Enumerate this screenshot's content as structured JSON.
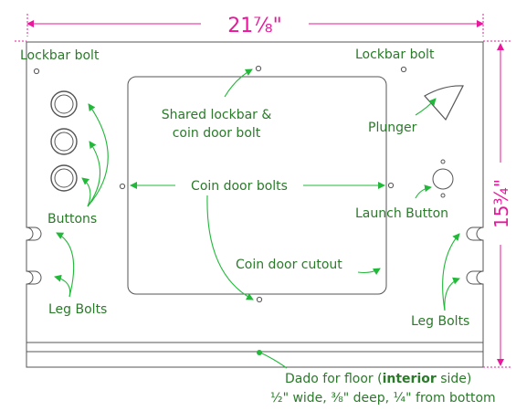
{
  "dimensions": {
    "width_label": "21⅞\"",
    "height_label": "15¾\""
  },
  "labels": {
    "lockbar_left": "Lockbar bolt",
    "lockbar_right": "Lockbar bolt",
    "shared_line1": "Shared lockbar &",
    "shared_line2": "coin door bolt",
    "plunger": "Plunger",
    "coin_door_bolts": "Coin door bolts",
    "buttons": "Buttons",
    "launch_button": "Launch Button",
    "coin_door_cutout": "Coin door cutout",
    "leg_bolts_left": "Leg Bolts",
    "leg_bolts_right": "Leg Bolts",
    "dado_prefix": "Dado for floor (",
    "dado_bold": "interior",
    "dado_suffix": " side)",
    "dado_spec": "½\" wide, ⅜\" deep, ¼\" from bottom"
  },
  "colors": {
    "dimension": "#e8179b",
    "leader": "#22b83a",
    "label": "#2a7a2a",
    "outline": "#555555"
  }
}
